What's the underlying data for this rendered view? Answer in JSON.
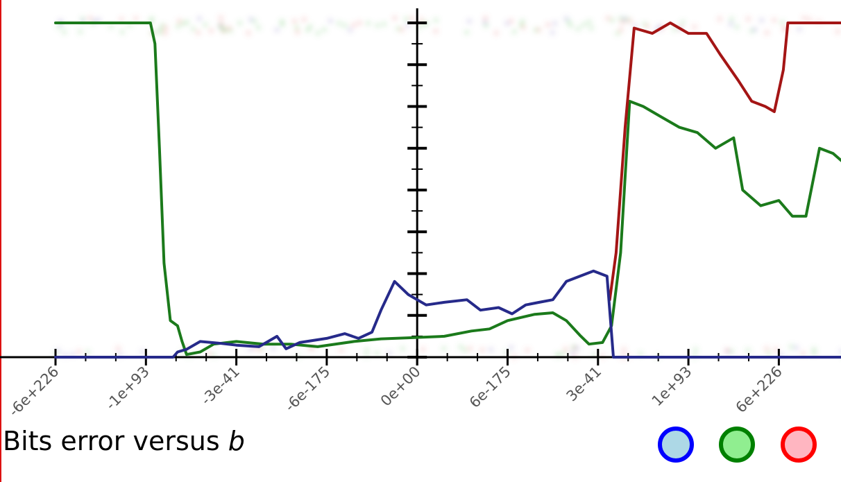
{
  "caption": {
    "prefix": "Bits error versus ",
    "variable": "b"
  },
  "legend": [
    {
      "key": "blue",
      "stroke": "#0000ff",
      "fill": "#add8e6"
    },
    {
      "key": "green",
      "stroke": "#008000",
      "fill": "#90ee90"
    },
    {
      "key": "red",
      "stroke": "#ff0000",
      "fill": "#ffb6c1"
    }
  ],
  "chart_data": {
    "type": "line",
    "title": "",
    "xlabel": "b",
    "ylabel": "",
    "x_tick_labels": [
      "-6e+226",
      "-1e+93",
      "-3e-41",
      "-6e-175",
      "0e+00",
      "6e-175",
      "3e-41",
      "1e+93",
      "6e+226"
    ],
    "y_tick_count": 16,
    "ylim": [
      0,
      64
    ],
    "x_index_range": [
      0,
      9.2
    ],
    "series": [
      {
        "key": "green",
        "color": "#1b7a1b",
        "points": [
          [
            0,
            64
          ],
          [
            0.3,
            64
          ],
          [
            0.7,
            64
          ],
          [
            1.05,
            64
          ],
          [
            1.1,
            60
          ],
          [
            1.15,
            40
          ],
          [
            1.2,
            18
          ],
          [
            1.27,
            7
          ],
          [
            1.35,
            6
          ],
          [
            1.4,
            3
          ],
          [
            1.45,
            0.5
          ],
          [
            1.6,
            1
          ],
          [
            1.75,
            2.5
          ],
          [
            2.0,
            3
          ],
          [
            2.3,
            2.5
          ],
          [
            2.6,
            2.5
          ],
          [
            2.9,
            2
          ],
          [
            3.3,
            3
          ],
          [
            3.6,
            3.5
          ],
          [
            3.9,
            3.7
          ],
          [
            4.3,
            4
          ],
          [
            4.6,
            5
          ],
          [
            4.8,
            5.4
          ],
          [
            5.0,
            7
          ],
          [
            5.3,
            8.2
          ],
          [
            5.5,
            8.5
          ],
          [
            5.65,
            7
          ],
          [
            5.8,
            4.2
          ],
          [
            5.9,
            2.5
          ],
          [
            6.05,
            2.8
          ],
          [
            6.15,
            6
          ],
          [
            6.25,
            20
          ],
          [
            6.35,
            49
          ],
          [
            6.5,
            48
          ],
          [
            6.7,
            46
          ],
          [
            6.9,
            44
          ],
          [
            7.1,
            43
          ],
          [
            7.3,
            40
          ],
          [
            7.5,
            42
          ],
          [
            7.6,
            32
          ],
          [
            7.8,
            29
          ],
          [
            8.0,
            30
          ],
          [
            8.15,
            27
          ],
          [
            8.3,
            27
          ],
          [
            8.45,
            40
          ],
          [
            8.6,
            39
          ],
          [
            8.8,
            36
          ],
          [
            9.0,
            37
          ],
          [
            9.2,
            34
          ]
        ]
      },
      {
        "key": "red",
        "color": "#a41515",
        "points": [
          [
            6.13,
            11
          ],
          [
            6.2,
            20
          ],
          [
            6.3,
            44
          ],
          [
            6.4,
            63
          ],
          [
            6.6,
            62
          ],
          [
            6.8,
            64
          ],
          [
            7.0,
            62
          ],
          [
            7.2,
            62
          ],
          [
            7.35,
            58
          ],
          [
            7.55,
            53
          ],
          [
            7.7,
            49
          ],
          [
            7.85,
            48
          ],
          [
            7.95,
            47
          ],
          [
            8.05,
            55
          ],
          [
            8.1,
            64
          ],
          [
            8.3,
            64
          ],
          [
            8.6,
            64
          ],
          [
            8.9,
            64
          ],
          [
            9.2,
            64
          ]
        ]
      },
      {
        "key": "blue",
        "color": "#262a8a",
        "points": [
          [
            0,
            0
          ],
          [
            0.5,
            0
          ],
          [
            1.0,
            0
          ],
          [
            1.3,
            0
          ],
          [
            1.35,
            1
          ],
          [
            1.45,
            1.5
          ],
          [
            1.6,
            3
          ],
          [
            1.8,
            2.7
          ],
          [
            2.0,
            2.3
          ],
          [
            2.25,
            2
          ],
          [
            2.45,
            4
          ],
          [
            2.55,
            1.6
          ],
          [
            2.7,
            2.8
          ],
          [
            2.85,
            3.2
          ],
          [
            3.0,
            3.6
          ],
          [
            3.2,
            4.5
          ],
          [
            3.35,
            3.6
          ],
          [
            3.5,
            4.8
          ],
          [
            3.6,
            9
          ],
          [
            3.75,
            14.5
          ],
          [
            3.9,
            12
          ],
          [
            4.1,
            10
          ],
          [
            4.3,
            10.5
          ],
          [
            4.55,
            11
          ],
          [
            4.7,
            9
          ],
          [
            4.9,
            9.5
          ],
          [
            5.05,
            8.3
          ],
          [
            5.2,
            10
          ],
          [
            5.35,
            10.5
          ],
          [
            5.5,
            11
          ],
          [
            5.65,
            14.5
          ],
          [
            5.8,
            15.5
          ],
          [
            5.95,
            16.5
          ],
          [
            6.1,
            15.5
          ],
          [
            6.17,
            0
          ],
          [
            6.3,
            0
          ],
          [
            6.6,
            0
          ],
          [
            7.0,
            0
          ],
          [
            7.5,
            0
          ],
          [
            8.0,
            0
          ],
          [
            8.5,
            0
          ],
          [
            9.2,
            0
          ]
        ]
      }
    ]
  }
}
